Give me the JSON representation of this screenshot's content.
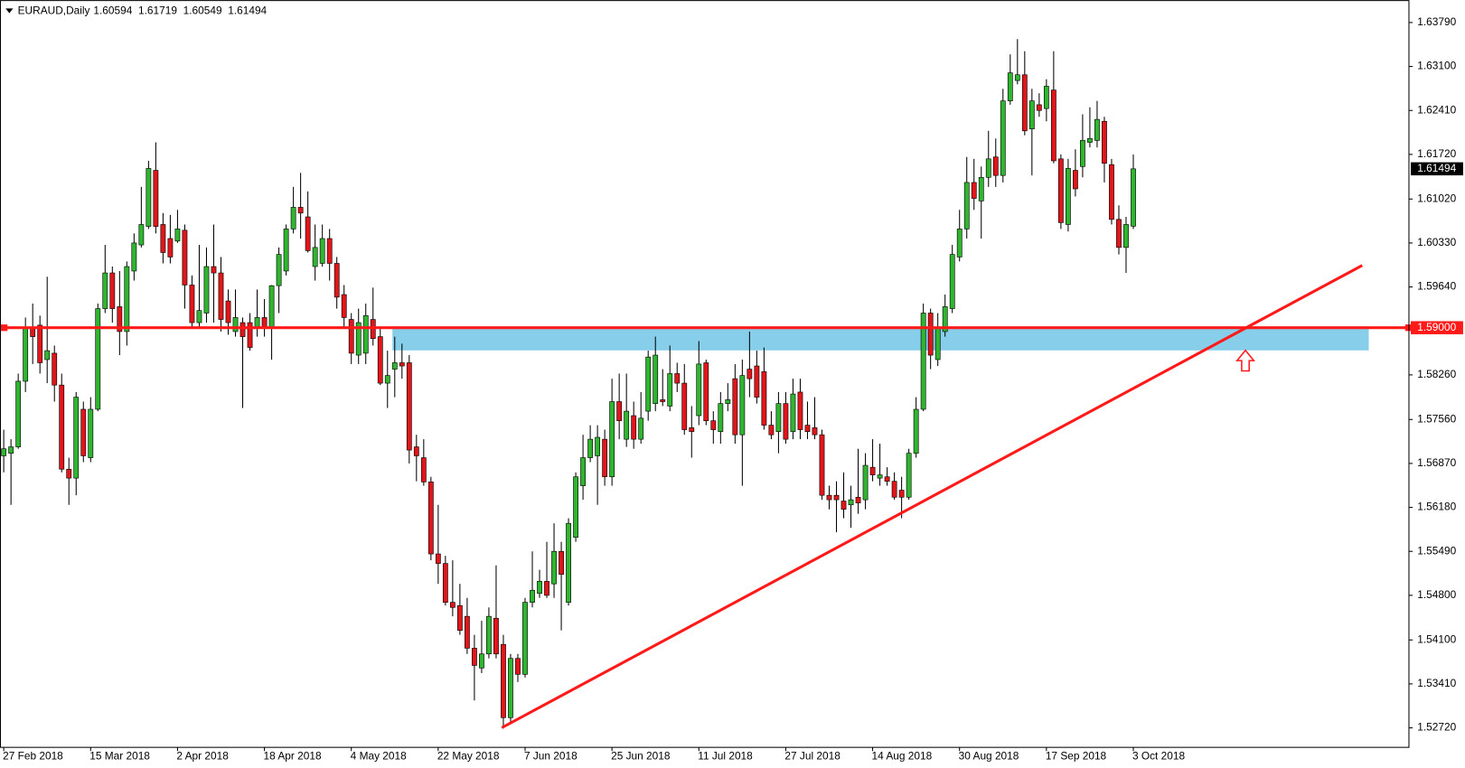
{
  "chart_data": {
    "type": "candlestick",
    "title": "EURAUD,Daily",
    "categories": [
      "27 Feb 2018",
      null,
      null,
      null,
      null,
      null,
      null,
      null,
      null,
      null,
      null,
      null,
      "15 Mar 2018",
      null,
      null,
      null,
      null,
      null,
      null,
      null,
      null,
      null,
      null,
      null,
      "2 Apr 2018",
      null,
      null,
      null,
      null,
      null,
      null,
      null,
      null,
      null,
      null,
      null,
      "18 Apr 2018",
      null,
      null,
      null,
      null,
      null,
      null,
      null,
      null,
      null,
      null,
      null,
      "4 May 2018",
      null,
      null,
      null,
      null,
      null,
      null,
      null,
      null,
      null,
      null,
      null,
      "22 May 2018",
      null,
      null,
      null,
      null,
      null,
      null,
      null,
      null,
      null,
      null,
      null,
      "7 Jun 2018",
      null,
      null,
      null,
      null,
      null,
      null,
      null,
      null,
      null,
      null,
      null,
      "25 Jun 2018",
      null,
      null,
      null,
      null,
      null,
      null,
      null,
      null,
      null,
      null,
      null,
      "11 Jul 2018",
      null,
      null,
      null,
      null,
      null,
      null,
      null,
      null,
      null,
      null,
      null,
      "27 Jul 2018",
      null,
      null,
      null,
      null,
      null,
      null,
      null,
      null,
      null,
      null,
      null,
      "14 Aug 2018",
      null,
      null,
      null,
      null,
      null,
      null,
      null,
      null,
      null,
      null,
      null,
      "30 Aug 2018",
      null,
      null,
      null,
      null,
      null,
      null,
      null,
      null,
      null,
      null,
      null,
      "17 Sep 2018",
      null,
      null,
      null,
      null,
      null,
      null,
      null,
      null,
      null,
      null,
      null,
      "3 Oct 2018"
    ],
    "open": [
      1.5699,
      1.5703,
      1.5713,
      1.5816,
      1.5901,
      1.5904,
      1.585,
      1.586,
      1.581,
      1.5678,
      1.5664,
      1.5772,
      1.5696,
      1.5772,
      1.593,
      1.5986,
      1.5933,
      1.5894,
      1.5989,
      1.603,
      1.6059,
      1.6147,
      1.6062,
      1.604,
      1.6036,
      1.6053,
      1.5967,
      1.5908,
      1.5923,
      1.5996,
      1.5986,
      1.5942,
      1.5894,
      1.5908,
      1.5908,
      1.5901,
      1.5916,
      1.5901,
      1.5966,
      1.5989,
      1.6055,
      1.6089,
      1.6074,
      1.5996,
      1.6001,
      1.604,
      1.6001,
      1.5952,
      1.5913,
      1.5857,
      1.586,
      1.5913,
      1.5886,
      1.5813,
      1.5835,
      1.5845,
      1.5845,
      1.5713,
      1.5696,
      1.5658,
      1.5545,
      1.553,
      1.5469,
      1.5464,
      1.5447,
      1.5397,
      1.5366,
      1.5388,
      1.5444,
      1.5403,
      1.5288,
      1.5381,
      1.5356,
      1.5469,
      1.5483,
      1.5502,
      1.5498,
      1.5549,
      1.5469,
      1.5571,
      1.5652,
      1.5696,
      1.5699,
      1.5725,
      1.5666,
      1.5784,
      1.5725,
      1.5762,
      1.5725,
      1.5769,
      1.5781,
      1.5787,
      1.5777,
      1.5828,
      1.5813,
      1.5743,
      1.5762,
      1.5845,
      1.5754,
      1.5737,
      1.5781,
      1.582,
      1.5732,
      1.5835,
      1.584,
      1.5831,
      1.5747,
      1.5737,
      1.5781,
      1.5737,
      1.5799,
      1.5747,
      1.5743,
      1.5732,
      1.5637,
      1.5637,
      1.5628,
      1.5622,
      1.5634,
      1.563,
      1.5681,
      1.5664,
      1.5666,
      1.5659,
      1.5645,
      1.5634,
      1.5703,
      1.5772,
      1.5923,
      1.585,
      1.5894,
      1.593,
      1.6011,
      1.6055,
      1.6128,
      1.6099,
      1.6136,
      1.6168,
      1.6139,
      1.6256,
      1.6288,
      1.6297,
      1.6212,
      1.625,
      1.6244,
      1.6273,
      1.6165,
      1.6062,
      1.6147,
      1.6153,
      1.6191,
      1.6194,
      1.6224,
      1.6156,
      1.607,
      1.6026,
      1.60594
    ],
    "high": [
      1.574,
      1.5725,
      1.5828,
      1.5916,
      1.5938,
      1.5919,
      1.598,
      1.5872,
      1.5828,
      1.5696,
      1.5799,
      1.5784,
      1.5791,
      1.5938,
      1.603,
      1.5996,
      1.5989,
      1.6004,
      1.6048,
      1.6121,
      1.6162,
      1.6191,
      1.608,
      1.6077,
      1.6085,
      1.6062,
      1.5982,
      1.603,
      1.6026,
      1.6062,
      1.6011,
      1.596,
      1.596,
      1.5916,
      1.5923,
      1.596,
      1.5945,
      1.5967,
      1.6026,
      1.6062,
      1.6121,
      1.6143,
      1.6114,
      1.6062,
      1.6062,
      1.6055,
      1.6011,
      1.5967,
      1.5923,
      1.593,
      1.5938,
      1.5963,
      1.5901,
      1.5864,
      1.5886,
      1.5875,
      1.5857,
      1.5732,
      1.5725,
      1.5666,
      1.5622,
      1.5542,
      1.5535,
      1.5498,
      1.5476,
      1.5418,
      1.544,
      1.5461,
      1.5527,
      1.5418,
      1.5388,
      1.5388,
      1.5476,
      1.5549,
      1.552,
      1.5564,
      1.5593,
      1.5564,
      1.5601,
      1.5673,
      1.5732,
      1.5747,
      1.5747,
      1.574,
      1.582,
      1.5828,
      1.5828,
      1.5784,
      1.5799,
      1.5864,
      1.5886,
      1.5835,
      1.5872,
      1.5845,
      1.5843,
      1.5777,
      1.5879,
      1.585,
      1.5769,
      1.5799,
      1.5813,
      1.5843,
      1.585,
      1.5894,
      1.5864,
      1.5869,
      1.5769,
      1.5799,
      1.5799,
      1.582,
      1.582,
      1.5784,
      1.5791,
      1.574,
      1.5652,
      1.5659,
      1.5673,
      1.5652,
      1.571,
      1.5703,
      1.5725,
      1.5718,
      1.5681,
      1.5673,
      1.5666,
      1.571,
      1.5791,
      1.5938,
      1.593,
      1.5923,
      1.5952,
      1.603,
      1.6085,
      1.6168,
      1.6165,
      1.6153,
      1.6209,
      1.6197,
      1.6275,
      1.6329,
      1.6353,
      1.6334,
      1.6275,
      1.6268,
      1.629,
      1.6334,
      1.6172,
      1.6165,
      1.618,
      1.6235,
      1.6246,
      1.6256,
      1.6231,
      1.6165,
      1.6092,
      1.6074,
      1.61719
    ],
    "low": [
      1.5673,
      1.5622,
      1.571,
      1.5799,
      1.5843,
      1.5828,
      1.5813,
      1.5784,
      1.5673,
      1.5622,
      1.5637,
      1.5689,
      1.5689,
      1.5769,
      1.5923,
      1.5908,
      1.5857,
      1.5872,
      1.5974,
      1.6026,
      1.6055,
      1.6048,
      1.6001,
      1.6001,
      1.6033,
      1.593,
      1.5901,
      1.5901,
      1.5908,
      1.5908,
      1.5894,
      1.5889,
      1.5886,
      1.5774,
      1.5864,
      1.5886,
      1.5886,
      1.585,
      1.5923,
      1.5982,
      1.6048,
      1.604,
      1.6018,
      1.5974,
      1.5996,
      1.5974,
      1.593,
      1.5898,
      1.5843,
      1.5843,
      1.5843,
      1.5872,
      1.581,
      1.5774,
      1.5791,
      1.582,
      1.5687,
      1.5659,
      1.5652,
      1.5535,
      1.5498,
      1.5464,
      1.5447,
      1.5418,
      1.5388,
      1.5315,
      1.5358,
      1.5381,
      1.5381,
      1.5271,
      1.5278,
      1.5344,
      1.5351,
      1.5461,
      1.5476,
      1.5476,
      1.5476,
      1.5425,
      1.5464,
      1.5564,
      1.563,
      1.5689,
      1.5622,
      1.5652,
      1.5652,
      1.5725,
      1.5713,
      1.571,
      1.5718,
      1.5754,
      1.5769,
      1.5777,
      1.5769,
      1.5799,
      1.5732,
      1.5696,
      1.5747,
      1.5747,
      1.5718,
      1.5718,
      1.5769,
      1.5718,
      1.5652,
      1.5791,
      1.5781,
      1.574,
      1.5725,
      1.5703,
      1.5718,
      1.5725,
      1.5725,
      1.5725,
      1.5725,
      1.563,
      1.5615,
      1.5579,
      1.5601,
      1.5586,
      1.5608,
      1.5615,
      1.5659,
      1.5652,
      1.5652,
      1.563,
      1.5601,
      1.563,
      1.5696,
      1.5769,
      1.5835,
      1.584,
      1.5886,
      1.5923,
      1.6004,
      1.604,
      1.6085,
      1.604,
      1.6121,
      1.6121,
      1.6128,
      1.625,
      1.6282,
      1.6202,
      1.6139,
      1.6231,
      1.6224,
      1.6158,
      1.6055,
      1.6051,
      1.6106,
      1.6136,
      1.6183,
      1.6183,
      1.6128,
      1.6062,
      1.6015,
      1.5986,
      1.60549
    ],
    "close": [
      1.571,
      1.5713,
      1.5816,
      1.5901,
      1.5886,
      1.5845,
      1.5864,
      1.581,
      1.5678,
      1.5664,
      1.5791,
      1.5699,
      1.5772,
      1.593,
      1.5986,
      1.593,
      1.5894,
      1.5996,
      1.6033,
      1.6062,
      1.615,
      1.6059,
      1.6018,
      1.6011,
      1.6055,
      1.5967,
      1.5908,
      1.5927,
      1.5996,
      1.5986,
      1.5913,
      1.5908,
      1.5916,
      1.5886,
      1.5869,
      1.5916,
      1.5901,
      1.5966,
      1.6015,
      1.6055,
      1.6089,
      1.608,
      1.6021,
      1.6026,
      1.604,
      1.6001,
      1.5948,
      1.5916,
      1.586,
      1.5908,
      1.5919,
      1.5883,
      1.5813,
      1.5825,
      1.5845,
      1.584,
      1.5708,
      1.5699,
      1.5658,
      1.5545,
      1.553,
      1.5469,
      1.5461,
      1.5425,
      1.5397,
      1.537,
      1.5388,
      1.5447,
      1.5388,
      1.5288,
      1.5381,
      1.5356,
      1.5469,
      1.5488,
      1.5502,
      1.548,
      1.5549,
      1.5513,
      1.5593,
      1.5666,
      1.5696,
      1.5725,
      1.5728,
      1.5666,
      1.5784,
      1.5754,
      1.5769,
      1.5725,
      1.5758,
      1.5854,
      1.5857,
      1.5784,
      1.5828,
      1.5813,
      1.574,
      1.5737,
      1.5843,
      1.5754,
      1.574,
      1.5781,
      1.5787,
      1.5732,
      1.5825,
      1.582,
      1.5791,
      1.5747,
      1.5732,
      1.5781,
      1.5725,
      1.5796,
      1.574,
      1.5737,
      1.5732,
      1.5637,
      1.563,
      1.563,
      1.5615,
      1.563,
      1.5625,
      1.5684,
      1.5669,
      1.5669,
      1.5659,
      1.5634,
      1.5634,
      1.5703,
      1.5772,
      1.5923,
      1.5857,
      1.5901,
      1.5933,
      1.6015,
      1.6055,
      1.6128,
      1.6103,
      1.6136,
      1.6165,
      1.6139,
      1.6256,
      1.63,
      1.6297,
      1.6209,
      1.6256,
      1.6241,
      1.6279,
      1.6162,
      1.6065,
      1.615,
      1.6118,
      1.6194,
      1.6197,
      1.6227,
      1.6158,
      1.607,
      1.6026,
      1.6062,
      1.61494
    ],
    "up_color": "#2fb52f",
    "down_color": "#e0161a",
    "ylim": [
      1.52414,
      1.64142
    ],
    "yticks": [
      {
        "value": 1.6379,
        "label": "1.63790"
      },
      {
        "value": 1.631,
        "label": "1.63100"
      },
      {
        "value": 1.6241,
        "label": "1.62410"
      },
      {
        "value": 1.6172,
        "label": "1.61720"
      },
      {
        "value": 1.6102,
        "label": "1.61020"
      },
      {
        "value": 1.6033,
        "label": "1.60330"
      },
      {
        "value": 1.5964,
        "label": "1.59640"
      },
      {
        "value": 1.5826,
        "label": "1.58260"
      },
      {
        "value": 1.5756,
        "label": "1.57560"
      },
      {
        "value": 1.5687,
        "label": "1.56870"
      },
      {
        "value": 1.5618,
        "label": "1.56180"
      },
      {
        "value": 1.5549,
        "label": "1.55490"
      },
      {
        "value": 1.548,
        "label": "1.54800"
      },
      {
        "value": 1.541,
        "label": "1.54100"
      },
      {
        "value": 1.5341,
        "label": "1.53410"
      },
      {
        "value": 1.5272,
        "label": "1.52720"
      }
    ],
    "level": {
      "value": 1.59,
      "label": "1.59000",
      "color": "#ff1a1a"
    }
  }
}
